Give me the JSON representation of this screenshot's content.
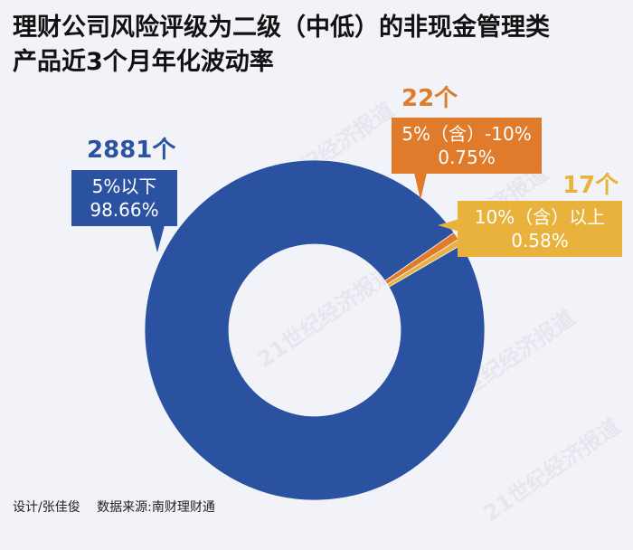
{
  "title": {
    "line1": "理财公司风险评级为二级（中低）的非现金管理类",
    "line2": "产品近3个月年化波动率"
  },
  "chart_data": {
    "type": "pie",
    "title": "理财公司风险评级为二级（中低）的非现金管理类产品近3个月年化波动率",
    "slices": [
      {
        "label": "5%以下",
        "value": 98.66,
        "count": "2881个",
        "percent": "98.66%",
        "color": "#2b52a0"
      },
      {
        "label": "5%（含）-10%",
        "value": 0.75,
        "count": "22个",
        "percent": "0.75%",
        "color": "#e07b2c"
      },
      {
        "label": "10%（含）以上",
        "value": 0.58,
        "count": "17个",
        "percent": "0.58%",
        "color": "#e8b23c"
      }
    ]
  },
  "footer": {
    "designer": "设计/张佳俊",
    "source": "数据来源:南财理财通"
  },
  "watermark": "21世纪经济报道",
  "colors": {
    "background": "#f2f3f8",
    "blue": "#2b52a0",
    "orange": "#e07b2c",
    "yellow": "#e8b23c"
  }
}
